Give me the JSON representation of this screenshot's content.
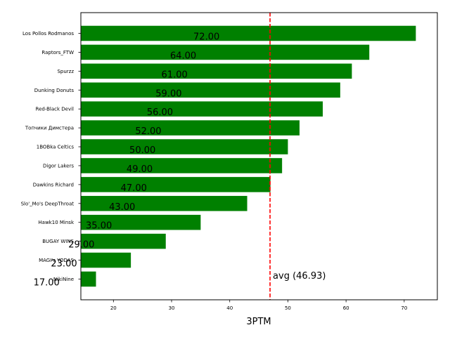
{
  "chart_data": {
    "type": "bar",
    "orientation": "horizontal",
    "title": "",
    "xlabel": "3PTM",
    "ylabel": "",
    "xlim": [
      14.4,
      75.7
    ],
    "xticks": [
      20,
      30,
      40,
      50,
      60,
      70
    ],
    "grid": false,
    "legend": null,
    "bar_color": "#008000",
    "categories": [
      "Los Pollos Rodmanos",
      "Raptors_FTW",
      "Spurzz",
      "Dunking Donuts",
      "Red-Black Devil",
      "Топчики Димстера",
      "1BOBka Celtics",
      "Digor Lakers",
      "Dawkins Richard",
      "Slo'_Mo's DeepThroat",
      "Hawk10 Minsk",
      "BUGAY WINS",
      "MAGI's YODAS",
      "NikiNine"
    ],
    "values": [
      72,
      64,
      61,
      59,
      56,
      52,
      50,
      49,
      47,
      43,
      35,
      29,
      23,
      17
    ],
    "value_labels": [
      "72.00",
      "64.00",
      "61.00",
      "59.00",
      "56.00",
      "52.00",
      "50.00",
      "49.00",
      "47.00",
      "43.00",
      "35.00",
      "29.00",
      "23.00",
      "17.00"
    ],
    "reference_line": {
      "value": 46.93,
      "label": "avg (46.93)",
      "color": "#ff0000",
      "style": "dashed"
    }
  }
}
